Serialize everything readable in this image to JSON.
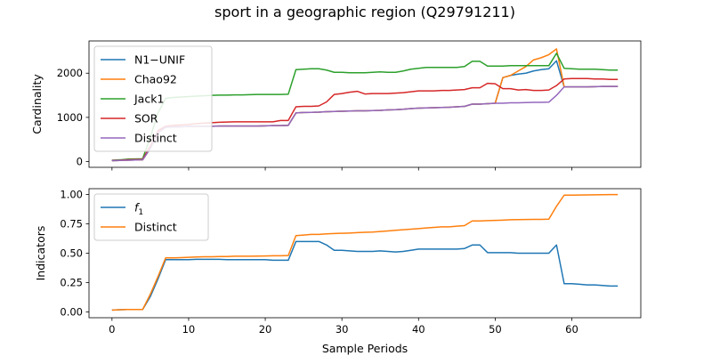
{
  "title": "sport in a geographic region (Q29791211)",
  "colors": {
    "blue": "#1f77b4",
    "orange": "#ff7f0e",
    "green": "#2ca02c",
    "red": "#d62728",
    "purple": "#9467bd"
  },
  "chart_data": [
    {
      "type": "line",
      "ylabel": "Cardinality",
      "xlabel": "",
      "xlim": [
        -3,
        69
      ],
      "ylim": [
        -130,
        2730
      ],
      "xticks": [
        0,
        10,
        20,
        30,
        40,
        50,
        60
      ],
      "yticks": [
        0,
        1000,
        2000
      ],
      "legend": "top-left",
      "series": [
        {
          "name": "N1−UNIF",
          "color": "#1f77b4",
          "x": [
            0,
            1,
            2,
            3,
            4,
            5,
            6,
            7,
            8,
            9,
            10,
            11,
            12,
            13,
            14,
            15,
            16,
            17,
            18,
            19,
            20,
            21,
            22,
            23,
            24,
            25,
            26,
            27,
            28,
            29,
            30,
            31,
            32,
            33,
            34,
            35,
            36,
            37,
            38,
            39,
            40,
            41,
            42,
            43,
            44,
            45,
            46,
            47,
            48,
            49,
            50,
            51,
            52,
            53,
            54,
            55,
            56,
            57,
            58,
            59,
            60,
            61,
            62,
            63,
            64,
            65,
            66
          ],
          "y": [
            20,
            25,
            30,
            35,
            40,
            300,
            650,
            780,
            785,
            790,
            795,
            800,
            800,
            800,
            805,
            805,
            805,
            805,
            805,
            805,
            810,
            815,
            815,
            820,
            1100,
            1110,
            1115,
            1120,
            1130,
            1135,
            1140,
            1145,
            1150,
            1150,
            1155,
            1160,
            1170,
            1175,
            1185,
            1200,
            1210,
            1215,
            1220,
            1225,
            1230,
            1240,
            1250,
            1300,
            1300,
            1310,
            1320,
            1900,
            1950,
            1980,
            2000,
            2050,
            2080,
            2100,
            2280,
            1690,
            1690,
            1690,
            1690,
            1695,
            1700,
            1700,
            1700
          ]
        },
        {
          "name": "Chao92",
          "color": "#ff7f0e",
          "x": [
            0,
            1,
            2,
            3,
            4,
            5,
            6,
            7,
            8,
            9,
            10,
            11,
            12,
            13,
            14,
            15,
            16,
            17,
            18,
            19,
            20,
            21,
            22,
            23,
            24,
            25,
            26,
            27,
            28,
            29,
            30,
            31,
            32,
            33,
            34,
            35,
            36,
            37,
            38,
            39,
            40,
            41,
            42,
            43,
            44,
            45,
            46,
            47,
            48,
            49,
            50,
            51,
            52,
            53,
            54,
            55,
            56,
            57,
            58,
            59,
            60,
            61,
            62,
            63,
            64,
            65,
            66
          ],
          "y": [
            20,
            25,
            30,
            35,
            40,
            300,
            650,
            780,
            785,
            790,
            795,
            800,
            800,
            800,
            805,
            805,
            805,
            805,
            805,
            805,
            810,
            815,
            815,
            820,
            1100,
            1110,
            1115,
            1120,
            1130,
            1135,
            1140,
            1145,
            1150,
            1150,
            1155,
            1160,
            1170,
            1175,
            1185,
            1200,
            1210,
            1215,
            1220,
            1225,
            1230,
            1240,
            1250,
            1300,
            1300,
            1310,
            1320,
            1900,
            1950,
            2050,
            2150,
            2300,
            2350,
            2420,
            2550,
            1690,
            1690,
            1690,
            1690,
            1695,
            1700,
            1700,
            1700
          ]
        },
        {
          "name": "Jack1",
          "color": "#2ca02c",
          "x": [
            0,
            1,
            2,
            3,
            4,
            5,
            6,
            7,
            8,
            9,
            10,
            11,
            12,
            13,
            14,
            15,
            16,
            17,
            18,
            19,
            20,
            21,
            22,
            23,
            24,
            25,
            26,
            27,
            28,
            29,
            30,
            31,
            32,
            33,
            34,
            35,
            36,
            37,
            38,
            39,
            40,
            41,
            42,
            43,
            44,
            45,
            46,
            47,
            48,
            49,
            50,
            51,
            52,
            53,
            54,
            55,
            56,
            57,
            58,
            59,
            60,
            61,
            62,
            63,
            64,
            65,
            66
          ],
          "y": [
            30,
            40,
            55,
            60,
            65,
            550,
            1100,
            1430,
            1450,
            1460,
            1470,
            1480,
            1490,
            1500,
            1505,
            1505,
            1510,
            1510,
            1515,
            1520,
            1520,
            1520,
            1520,
            1525,
            2080,
            2090,
            2100,
            2100,
            2070,
            2020,
            2020,
            2010,
            2010,
            2010,
            2020,
            2030,
            2020,
            2020,
            2050,
            2090,
            2110,
            2130,
            2130,
            2130,
            2130,
            2130,
            2150,
            2270,
            2270,
            2160,
            2160,
            2160,
            2170,
            2170,
            2170,
            2170,
            2170,
            2170,
            2450,
            2110,
            2100,
            2090,
            2090,
            2090,
            2080,
            2070,
            2070
          ]
        },
        {
          "name": "SOR",
          "color": "#d62728",
          "x": [
            0,
            1,
            2,
            3,
            4,
            5,
            6,
            7,
            8,
            9,
            10,
            11,
            12,
            13,
            14,
            15,
            16,
            17,
            18,
            19,
            20,
            21,
            22,
            23,
            24,
            25,
            26,
            27,
            28,
            29,
            30,
            31,
            32,
            33,
            34,
            35,
            36,
            37,
            38,
            39,
            40,
            41,
            42,
            43,
            44,
            45,
            46,
            47,
            48,
            49,
            50,
            51,
            52,
            53,
            54,
            55,
            56,
            57,
            58,
            59,
            60,
            61,
            62,
            63,
            64,
            65,
            66
          ],
          "y": [
            25,
            30,
            40,
            45,
            50,
            350,
            700,
            800,
            820,
            830,
            840,
            860,
            870,
            880,
            890,
            895,
            900,
            900,
            900,
            900,
            900,
            900,
            930,
            930,
            1240,
            1250,
            1250,
            1260,
            1350,
            1520,
            1540,
            1570,
            1590,
            1530,
            1540,
            1540,
            1540,
            1550,
            1560,
            1580,
            1600,
            1600,
            1600,
            1610,
            1610,
            1620,
            1630,
            1670,
            1670,
            1770,
            1760,
            1650,
            1650,
            1620,
            1630,
            1610,
            1610,
            1620,
            1720,
            1870,
            1880,
            1880,
            1880,
            1870,
            1870,
            1860,
            1860
          ]
        },
        {
          "name": "Distinct",
          "color": "#9467bd",
          "x": [
            0,
            1,
            2,
            3,
            4,
            5,
            6,
            7,
            8,
            9,
            10,
            11,
            12,
            13,
            14,
            15,
            16,
            17,
            18,
            19,
            20,
            21,
            22,
            23,
            24,
            25,
            26,
            27,
            28,
            29,
            30,
            31,
            32,
            33,
            34,
            35,
            36,
            37,
            38,
            39,
            40,
            41,
            42,
            43,
            44,
            45,
            46,
            47,
            48,
            49,
            50,
            51,
            52,
            53,
            54,
            55,
            56,
            57,
            58,
            59,
            60,
            61,
            62,
            63,
            64,
            65,
            66
          ],
          "y": [
            20,
            25,
            30,
            35,
            40,
            300,
            650,
            780,
            785,
            790,
            795,
            800,
            800,
            800,
            805,
            805,
            805,
            805,
            805,
            805,
            810,
            815,
            815,
            820,
            1100,
            1110,
            1115,
            1120,
            1130,
            1135,
            1140,
            1145,
            1150,
            1150,
            1155,
            1160,
            1170,
            1175,
            1185,
            1200,
            1210,
            1215,
            1220,
            1225,
            1230,
            1240,
            1250,
            1300,
            1300,
            1310,
            1320,
            1320,
            1330,
            1330,
            1335,
            1340,
            1340,
            1345,
            1500,
            1690,
            1690,
            1690,
            1690,
            1695,
            1700,
            1700,
            1700
          ]
        }
      ]
    },
    {
      "type": "line",
      "ylabel": "Indicators",
      "xlabel": "Sample Periods",
      "xlim": [
        -3,
        69
      ],
      "ylim": [
        -0.05,
        1.05
      ],
      "xticks": [
        0,
        10,
        20,
        30,
        40,
        50,
        60
      ],
      "yticks": [
        0.0,
        0.25,
        0.5,
        0.75,
        1.0
      ],
      "ytick_labels": [
        "0.00",
        "0.25",
        "0.50",
        "0.75",
        "1.00"
      ],
      "legend": "top-left",
      "series": [
        {
          "name": "f",
          "name_subscript": "1",
          "color": "#1f77b4",
          "x": [
            0,
            1,
            2,
            3,
            4,
            5,
            6,
            7,
            8,
            9,
            10,
            11,
            12,
            13,
            14,
            15,
            16,
            17,
            18,
            19,
            20,
            21,
            22,
            23,
            24,
            25,
            26,
            27,
            28,
            29,
            30,
            31,
            32,
            33,
            34,
            35,
            36,
            37,
            38,
            39,
            40,
            41,
            42,
            43,
            44,
            45,
            46,
            47,
            48,
            49,
            50,
            51,
            52,
            53,
            54,
            55,
            56,
            57,
            58,
            59,
            60,
            61,
            62,
            63,
            64,
            65,
            66
          ],
          "y": [
            0.015,
            0.018,
            0.02,
            0.02,
            0.02,
            0.13,
            0.28,
            0.445,
            0.445,
            0.445,
            0.445,
            0.448,
            0.448,
            0.448,
            0.448,
            0.445,
            0.445,
            0.445,
            0.445,
            0.445,
            0.445,
            0.44,
            0.44,
            0.44,
            0.6,
            0.6,
            0.6,
            0.6,
            0.57,
            0.525,
            0.525,
            0.52,
            0.515,
            0.515,
            0.515,
            0.52,
            0.515,
            0.51,
            0.515,
            0.525,
            0.535,
            0.535,
            0.535,
            0.535,
            0.535,
            0.535,
            0.54,
            0.57,
            0.57,
            0.505,
            0.505,
            0.505,
            0.505,
            0.5,
            0.5,
            0.5,
            0.5,
            0.5,
            0.57,
            0.24,
            0.24,
            0.235,
            0.23,
            0.23,
            0.225,
            0.22,
            0.22
          ]
        },
        {
          "name": "Distinct",
          "color": "#ff7f0e",
          "x": [
            0,
            1,
            2,
            3,
            4,
            5,
            6,
            7,
            8,
            9,
            10,
            11,
            12,
            13,
            14,
            15,
            16,
            17,
            18,
            19,
            20,
            21,
            22,
            23,
            24,
            25,
            26,
            27,
            28,
            29,
            30,
            31,
            32,
            33,
            34,
            35,
            36,
            37,
            38,
            39,
            40,
            41,
            42,
            43,
            44,
            45,
            46,
            47,
            48,
            49,
            50,
            51,
            52,
            53,
            54,
            55,
            56,
            57,
            58,
            59,
            60,
            61,
            62,
            63,
            64,
            65,
            66
          ],
          "y": [
            0.015,
            0.018,
            0.02,
            0.02,
            0.02,
            0.15,
            0.3,
            0.46,
            0.46,
            0.462,
            0.465,
            0.468,
            0.47,
            0.47,
            0.472,
            0.472,
            0.474,
            0.474,
            0.474,
            0.475,
            0.476,
            0.478,
            0.478,
            0.48,
            0.65,
            0.655,
            0.66,
            0.66,
            0.665,
            0.668,
            0.67,
            0.672,
            0.675,
            0.678,
            0.68,
            0.685,
            0.69,
            0.695,
            0.7,
            0.705,
            0.71,
            0.715,
            0.72,
            0.725,
            0.725,
            0.73,
            0.735,
            0.775,
            0.775,
            0.778,
            0.78,
            0.782,
            0.785,
            0.786,
            0.787,
            0.788,
            0.788,
            0.79,
            0.9,
            0.995,
            0.995,
            0.996,
            0.997,
            0.998,
            0.999,
            1.0,
            1.0
          ]
        }
      ]
    }
  ]
}
